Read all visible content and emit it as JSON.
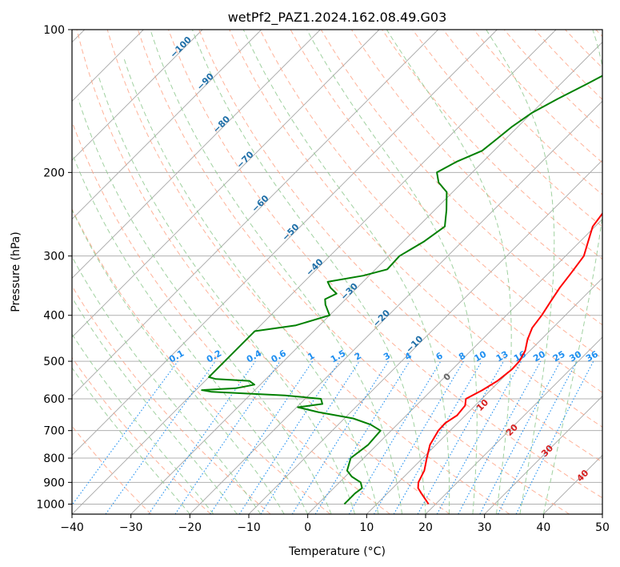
{
  "chart_data": {
    "type": "line",
    "subtype": "skew-t",
    "title": "wetPf2_PAZ1.2024.162.08.49.G03",
    "xlabel": "Temperature (°C)",
    "ylabel": "Pressure (hPa)",
    "xlim": [
      -40,
      50
    ],
    "ylim": [
      1050,
      100
    ],
    "yscale": "log",
    "grid": true,
    "x_ticks": [
      "−40",
      "−30",
      "−20",
      "−10",
      "0",
      "10",
      "20",
      "30",
      "40",
      "50"
    ],
    "y_ticks": [
      "1000",
      "900",
      "800",
      "700",
      "600",
      "500",
      "400",
      "300",
      "200",
      "100"
    ],
    "colors": {
      "temperature": "#ff0000",
      "dewpoint": "#008000",
      "isotherm": "#999999",
      "dry_adiabat": "#ff9f80",
      "moist_adiabat": "#8fc98f",
      "mixing_ratio": "#1f8ff0",
      "isotherm_label": "#1f6fa8",
      "dry_label": "#d62020"
    },
    "series": [
      {
        "key": "temperature",
        "pressure": [
          1000,
          950,
          925,
          900,
          850,
          800,
          750,
          700,
          675,
          650,
          620,
          600,
          575,
          550,
          520,
          500,
          475,
          450,
          425,
          400,
          375,
          350,
          325,
          300,
          280,
          260,
          240,
          220,
          200,
          190,
          180,
          170,
          160,
          150,
          140,
          130,
          120,
          115,
          110,
          105,
          100
        ],
        "temperature": [
          18.8,
          15.8,
          14.3,
          13.4,
          12.4,
          10.7,
          9.0,
          8.0,
          7.9,
          8.6,
          8.3,
          7.3,
          8.6,
          9.6,
          10.1,
          10.0,
          9.2,
          7.7,
          6.5,
          6.0,
          5.2,
          4.4,
          3.8,
          3.1,
          1.4,
          -0.4,
          -1.1,
          -1.1,
          -0.3,
          0.9,
          1.8,
          3.0,
          3.6,
          4.0,
          3.6,
          3.3,
          2.8,
          3.2,
          4.1,
          4.7,
          5.1
        ]
      },
      {
        "key": "dewpoint",
        "pressure": [
          1000,
          950,
          925,
          900,
          875,
          850,
          800,
          750,
          700,
          680,
          660,
          640,
          625,
          615,
          600,
          590,
          580,
          575,
          570,
          560,
          550,
          545,
          540,
          530,
          520,
          500,
          480,
          460,
          440,
          432,
          420,
          400,
          380,
          370,
          360,
          350,
          340,
          330,
          320,
          300,
          280,
          260,
          240,
          220,
          210,
          200,
          190,
          180,
          170,
          160,
          150,
          140,
          130,
          120,
          110,
          100
        ],
        "dewpoint": [
          4.5,
          4.5,
          4.8,
          3.6,
          1.1,
          -0.7,
          -2.2,
          -1.5,
          -1.8,
          -4.5,
          -8.5,
          -15.5,
          -19.8,
          -16.2,
          -17.3,
          -24.0,
          -37.0,
          -39.0,
          -33.5,
          -31.0,
          -32.5,
          -38.5,
          -40.0,
          -40.0,
          -40.0,
          -40.0,
          -40.0,
          -40.0,
          -40.0,
          -40.0,
          -34.0,
          -30.0,
          -32.5,
          -33.5,
          -32.5,
          -34.5,
          -36.0,
          -31.0,
          -28.0,
          -28.2,
          -26.5,
          -25.5,
          -28.0,
          -31.0,
          -34.0,
          -36.0,
          -34.5,
          -32.0,
          -31.5,
          -31.0,
          -30.0,
          -28.0,
          -25.5,
          -23.0,
          -19.5,
          -16.0
        ]
      }
    ],
    "isotherm_labels": [
      "−100",
      "−90",
      "−80",
      "−70",
      "−60",
      "−50",
      "−40",
      "−30",
      "−20",
      "−10"
    ],
    "mixing_ratio_labels": [
      "0.1",
      "0.2",
      "0.4",
      "0.6",
      "1",
      "1.5",
      "2",
      "3",
      "4",
      "6",
      "8",
      "10",
      "13",
      "16",
      "20",
      "25",
      "30",
      "36"
    ],
    "dry_adiabat_labels": [
      "0",
      "10",
      "20",
      "30",
      "40"
    ]
  }
}
